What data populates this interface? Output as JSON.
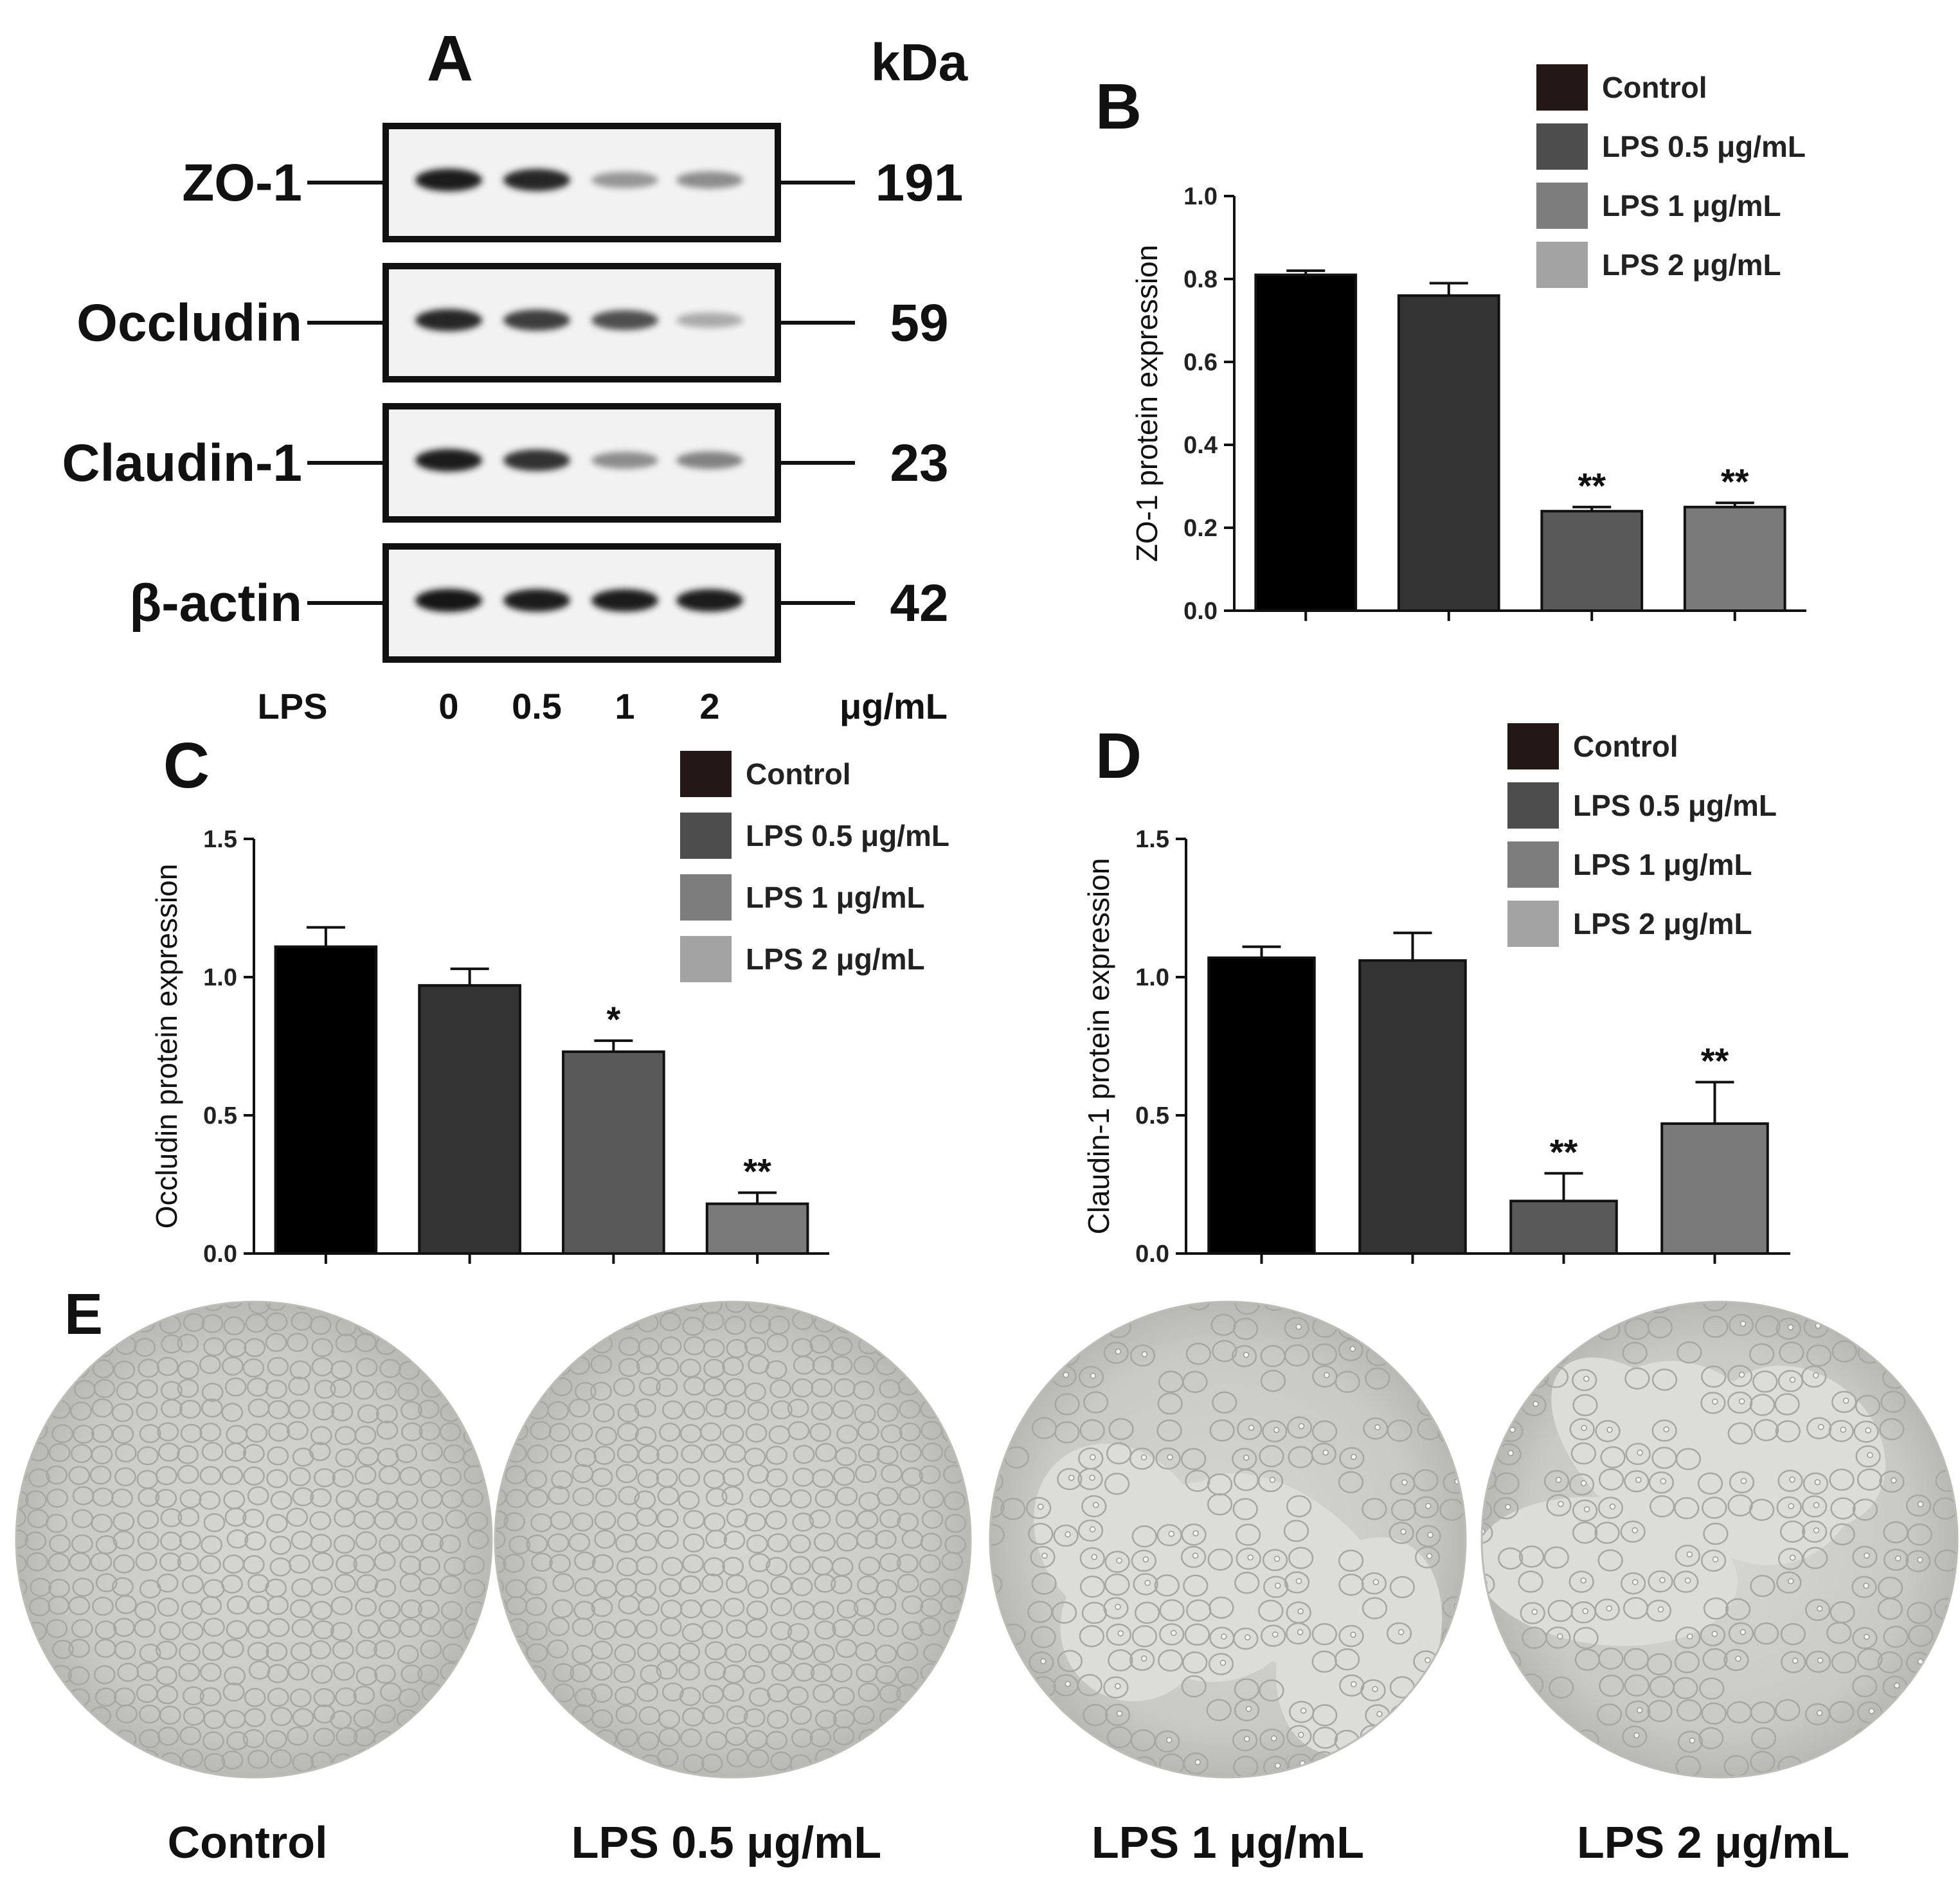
{
  "panel_a": {
    "letter": "A",
    "kda_header": "kDa",
    "blots": [
      {
        "protein": "ZO-1",
        "kda": "191",
        "band_intensities": [
          0.95,
          0.9,
          0.35,
          0.4
        ]
      },
      {
        "protein": "Occludin",
        "kda": "59",
        "band_intensities": [
          0.9,
          0.8,
          0.7,
          0.25
        ]
      },
      {
        "protein": "Claudin-1",
        "kda": "23",
        "band_intensities": [
          0.95,
          0.85,
          0.4,
          0.45
        ]
      },
      {
        "protein": "β-actin",
        "kda": "42",
        "band_intensities": [
          1.0,
          0.95,
          0.95,
          0.95
        ]
      }
    ],
    "lane_row": {
      "lead": "LPS",
      "lanes": [
        "0",
        "0.5",
        "1",
        "2"
      ],
      "unit": "μg/mL"
    }
  },
  "legend_entries": [
    {
      "label": "Control",
      "color": "#231815"
    },
    {
      "label": "LPS 0.5 μg/mL",
      "color": "#4d4d4d"
    },
    {
      "label": "LPS 1 μg/mL",
      "color": "#7d7d7d"
    },
    {
      "label": "LPS 2 μg/mL",
      "color": "#a3a3a3"
    }
  ],
  "chart_data": [
    {
      "panel": "B",
      "type": "bar",
      "categories": [
        "Control",
        "LPS 0.5 μg/mL",
        "LPS 1 μg/mL",
        "LPS 2 μg/mL"
      ],
      "values": [
        0.81,
        0.76,
        0.24,
        0.25
      ],
      "errors": [
        0.01,
        0.03,
        0.01,
        0.01
      ],
      "significance": [
        "",
        "",
        "**",
        "**"
      ],
      "bar_colors": [
        "#000000",
        "#333333",
        "#595959",
        "#7a7a7a"
      ],
      "ylabel": "ZO-1 protein expression",
      "ylim": [
        0,
        1.0
      ],
      "yticks": [
        "0.0",
        "0.2",
        "0.4",
        "0.6",
        "0.8",
        "1.0"
      ],
      "legend": "top-right"
    },
    {
      "panel": "C",
      "type": "bar",
      "categories": [
        "Control",
        "LPS 0.5 μg/mL",
        "LPS 1 μg/mL",
        "LPS 2 μg/mL"
      ],
      "values": [
        1.11,
        0.97,
        0.73,
        0.18
      ],
      "errors": [
        0.07,
        0.06,
        0.04,
        0.04
      ],
      "significance": [
        "",
        "",
        "*",
        "**"
      ],
      "bar_colors": [
        "#000000",
        "#333333",
        "#595959",
        "#7a7a7a"
      ],
      "ylabel": "Occludin protein expression",
      "ylim": [
        0,
        1.5
      ],
      "yticks": [
        "0.0",
        "0.5",
        "1.0",
        "1.5"
      ],
      "legend": "top-right"
    },
    {
      "panel": "D",
      "type": "bar",
      "categories": [
        "Control",
        "LPS 0.5 μg/mL",
        "LPS 1 μg/mL",
        "LPS 2 μg/mL"
      ],
      "values": [
        1.07,
        1.06,
        0.19,
        0.47
      ],
      "errors": [
        0.04,
        0.1,
        0.1,
        0.15
      ],
      "significance": [
        "",
        "",
        "**",
        "**"
      ],
      "bar_colors": [
        "#000000",
        "#333333",
        "#595959",
        "#7a7a7a"
      ],
      "ylabel": "Claudin-1 protein expression",
      "ylim": [
        0,
        1.5
      ],
      "yticks": [
        "0.0",
        "0.5",
        "1.0",
        "1.5"
      ],
      "legend": "top-right"
    }
  ],
  "panel_e": {
    "letter": "E",
    "images": [
      {
        "caption": "Control",
        "density": "dense"
      },
      {
        "caption": "LPS 0.5 μg/mL",
        "density": "dense"
      },
      {
        "caption": "LPS 1 μg/mL",
        "density": "sparse"
      },
      {
        "caption": "LPS 2 μg/mL",
        "density": "sparse"
      }
    ]
  }
}
